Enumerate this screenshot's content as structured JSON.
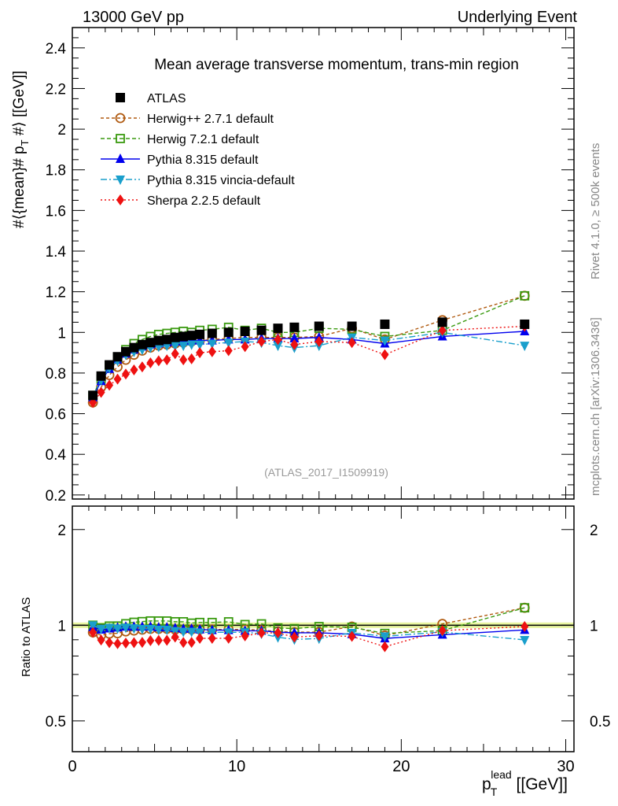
{
  "header": {
    "left": "13000 GeV pp",
    "right": "Underlying Event"
  },
  "side_text": {
    "rivet": "Rivet 4.1.0, ≥ 500k events",
    "mcplots": "mcplots.cern.ch [arXiv:1306.3436]"
  },
  "analysis_id": "(ATLAS_2017_I1509919)",
  "chart_data": {
    "type": "line",
    "title": "Mean average transverse momentum, trans-min region",
    "ylabel_main": "#⟨{mean}# p",
    "ylabel_sub": "T",
    "ylabel_tail": " #⟩ [[GeV]]",
    "ylabel_ratio": "Ratio to ATLAS",
    "xlabel_main": "p",
    "xlabel_sub": "T",
    "xlabel_sup": "lead",
    "xlabel_tail": " [[GeV]]",
    "xlim": [
      0,
      30.5
    ],
    "ylim": [
      0.18,
      2.5
    ],
    "ratio_ylim": [
      0.4,
      2.37
    ],
    "ratio_scale": "log",
    "xticks": [
      "0",
      "10",
      "20",
      "30"
    ],
    "yticks": [
      "0.2",
      "0.4",
      "0.6",
      "0.8",
      "1",
      "1.2",
      "1.4",
      "1.6",
      "1.8",
      "2",
      "2.2",
      "2.4"
    ],
    "ratio_yticks": [
      "0.5",
      "1",
      "2"
    ],
    "legend_position": "top-left",
    "x": [
      1.25,
      1.75,
      2.25,
      2.75,
      3.25,
      3.75,
      4.25,
      4.75,
      5.25,
      5.75,
      6.25,
      6.75,
      7.25,
      7.75,
      8.5,
      9.5,
      10.5,
      11.5,
      12.5,
      13.5,
      15,
      17,
      19,
      22.5,
      27.5
    ],
    "atlas_rel_unc": 0.02,
    "series": [
      {
        "name": "ATLAS",
        "color": "#000000",
        "marker": "square",
        "dash": "none",
        "values": [
          0.69,
          0.785,
          0.84,
          0.88,
          0.905,
          0.925,
          0.94,
          0.95,
          0.96,
          0.965,
          0.975,
          0.98,
          0.985,
          0.99,
          0.995,
          1.0,
          1.005,
          1.01,
          1.02,
          1.025,
          1.03,
          1.03,
          1.04,
          1.05,
          1.04
        ]
      },
      {
        "name": "Herwig++ 2.7.1 default",
        "color": "#b05a10",
        "marker": "circle-open",
        "dash": "4,3",
        "values": [
          0.655,
          0.73,
          0.79,
          0.83,
          0.865,
          0.89,
          0.91,
          0.925,
          0.935,
          0.94,
          0.945,
          0.95,
          0.955,
          0.96,
          0.965,
          0.97,
          0.975,
          0.975,
          0.975,
          0.975,
          0.98,
          1.02,
          0.965,
          1.06,
          1.18
        ]
      },
      {
        "name": "Herwig 7.2.1 default",
        "color": "#3a9a10",
        "marker": "square-open",
        "dash": "5,3",
        "values": [
          0.69,
          0.77,
          0.835,
          0.875,
          0.915,
          0.945,
          0.965,
          0.98,
          0.99,
          0.995,
          1.0,
          1.005,
          1.0,
          1.01,
          1.015,
          1.025,
          1.01,
          1.02,
          1.0,
          1.0,
          1.02,
          1.015,
          0.98,
          1.01,
          1.18
        ]
      },
      {
        "name": "Pythia 8.315 default",
        "color": "#0000ee",
        "marker": "triangle-up",
        "dash": "none",
        "values": [
          0.68,
          0.76,
          0.82,
          0.865,
          0.895,
          0.915,
          0.93,
          0.94,
          0.945,
          0.95,
          0.955,
          0.955,
          0.96,
          0.96,
          0.96,
          0.965,
          0.965,
          0.97,
          0.97,
          0.97,
          0.975,
          0.965,
          0.945,
          0.98,
          1.005
        ]
      },
      {
        "name": "Pythia 8.315 vincia-default",
        "color": "#1a9fcc",
        "marker": "triangle-down",
        "dash": "8,3,2,3",
        "values": [
          0.69,
          0.765,
          0.825,
          0.86,
          0.89,
          0.905,
          0.915,
          0.925,
          0.93,
          0.935,
          0.935,
          0.935,
          0.94,
          0.94,
          0.945,
          0.95,
          0.955,
          0.95,
          0.935,
          0.925,
          0.935,
          0.975,
          0.96,
          1.0,
          0.935
        ]
      },
      {
        "name": "Sherpa 2.2.5 default",
        "color": "#ee1111",
        "marker": "diamond",
        "dash": "2,3",
        "values": [
          0.655,
          0.705,
          0.74,
          0.77,
          0.795,
          0.815,
          0.83,
          0.85,
          0.86,
          0.865,
          0.895,
          0.865,
          0.87,
          0.9,
          0.905,
          0.91,
          0.93,
          0.955,
          0.965,
          0.94,
          0.955,
          0.95,
          0.89,
          1.01,
          1.03
        ]
      }
    ]
  }
}
